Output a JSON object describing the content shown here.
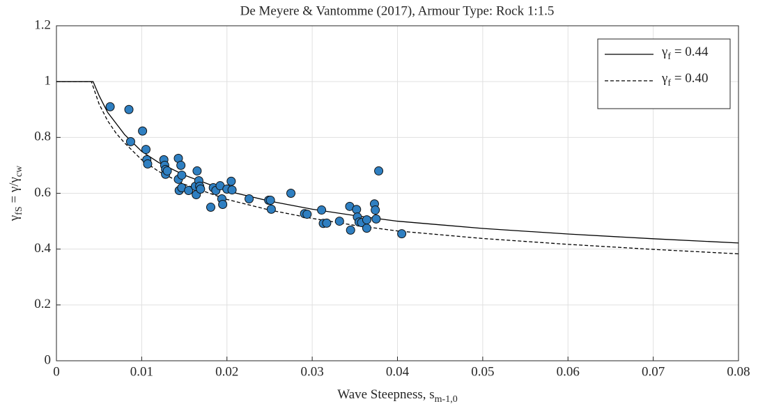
{
  "chart_data": {
    "type": "scatter",
    "title": "De Meyere & Vantomme  (2017), Armour Type: Rock 1:1.5",
    "xlabel": [
      {
        "text": "Wave Steepness, s"
      },
      {
        "text": "m-1,0",
        "sub": true
      }
    ],
    "ylabel": [
      {
        "text": "γ"
      },
      {
        "text": "fS",
        "sub": true
      },
      {
        "text": " = γ/γ"
      },
      {
        "text": "cw",
        "sub": true
      }
    ],
    "xlim": [
      0,
      0.08
    ],
    "xticks": [
      0,
      0.01,
      0.02,
      0.03,
      0.04,
      0.05,
      0.06,
      0.07,
      0.08
    ],
    "ylim": [
      0,
      1.2
    ],
    "yticks": [
      0,
      0.2,
      0.4,
      0.6,
      0.8,
      1,
      1.2
    ],
    "grid": true,
    "legend": "northeast",
    "color": "#2f7fc1",
    "x": [
      0.0063,
      0.0085,
      0.0087,
      0.0101,
      0.0105,
      0.0106,
      0.0107,
      0.0126,
      0.0127,
      0.0128,
      0.0128,
      0.013,
      0.0143,
      0.0143,
      0.0144,
      0.0146,
      0.0147,
      0.0147,
      0.0155,
      0.0163,
      0.0164,
      0.0165,
      0.0167,
      0.0168,
      0.0169,
      0.0181,
      0.0184,
      0.0187,
      0.0192,
      0.0194,
      0.0195,
      0.02,
      0.0205,
      0.0206,
      0.0226,
      0.0249,
      0.0251,
      0.0252,
      0.0275,
      0.0291,
      0.0294,
      0.0311,
      0.0313,
      0.0317,
      0.0332,
      0.0344,
      0.0345,
      0.0352,
      0.0353,
      0.0355,
      0.0358,
      0.0364,
      0.0364,
      0.0373,
      0.0374,
      0.0375,
      0.0378,
      0.0405
    ],
    "values": [
      0.91,
      0.9,
      0.785,
      0.823,
      0.757,
      0.72,
      0.705,
      0.72,
      0.7,
      0.685,
      0.668,
      0.68,
      0.725,
      0.65,
      0.61,
      0.7,
      0.665,
      0.62,
      0.61,
      0.625,
      0.595,
      0.68,
      0.645,
      0.625,
      0.615,
      0.55,
      0.62,
      0.61,
      0.627,
      0.58,
      0.56,
      0.615,
      0.643,
      0.612,
      0.58,
      0.575,
      0.575,
      0.543,
      0.6,
      0.527,
      0.525,
      0.54,
      0.492,
      0.493,
      0.5,
      0.553,
      0.468,
      0.542,
      0.515,
      0.497,
      0.495,
      0.475,
      0.505,
      0.562,
      0.54,
      0.508,
      0.68,
      0.455
    ],
    "series": [
      {
        "name": [
          {
            "text": "γ"
          },
          {
            "text": "f",
            "sub": true
          },
          {
            "text": " = 0.44"
          }
        ],
        "color": "#000000",
        "dashed": false,
        "x": [
          0,
          0.0043,
          0.005,
          0.006,
          0.007,
          0.008,
          0.01,
          0.012,
          0.015,
          0.02,
          0.025,
          0.03,
          0.035,
          0.04,
          0.05,
          0.06,
          0.07,
          0.08
        ],
        "values": [
          1,
          1,
          0.95,
          0.89,
          0.85,
          0.81,
          0.75,
          0.71,
          0.665,
          0.608,
          0.572,
          0.543,
          0.52,
          0.5,
          0.474,
          0.454,
          0.437,
          0.422
        ]
      },
      {
        "name": [
          {
            "text": "γ"
          },
          {
            "text": "f",
            "sub": true
          },
          {
            "text": " = 0.40"
          }
        ],
        "color": "#000000",
        "dashed": true,
        "x": [
          0,
          0.0041,
          0.005,
          0.006,
          0.007,
          0.008,
          0.01,
          0.012,
          0.015,
          0.02,
          0.025,
          0.03,
          0.035,
          0.04,
          0.05,
          0.06,
          0.07,
          0.08
        ],
        "values": [
          1,
          1,
          0.92,
          0.86,
          0.815,
          0.78,
          0.72,
          0.678,
          0.632,
          0.578,
          0.54,
          0.51,
          0.485,
          0.465,
          0.438,
          0.417,
          0.399,
          0.383
        ]
      }
    ]
  }
}
